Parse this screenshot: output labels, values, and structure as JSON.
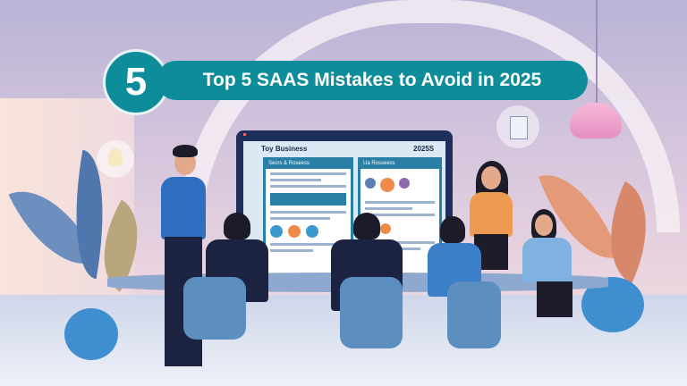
{
  "banner": {
    "number": "5",
    "title": "Top 5 SAAS Mistakes to Avoid in 2025"
  },
  "screen": {
    "heading": "Toy Business",
    "year": "2025S",
    "left_card_title": "Secrs & Roseess",
    "right_card_title": "Ua Rosseess"
  },
  "colors": {
    "accent": "#0d8c9a",
    "screen_frame": "#1e2f5c",
    "card_header": "#2a7fa6"
  },
  "icons": [
    "lightbulb-icon",
    "document-icon",
    "pendant-lamp-icon"
  ]
}
